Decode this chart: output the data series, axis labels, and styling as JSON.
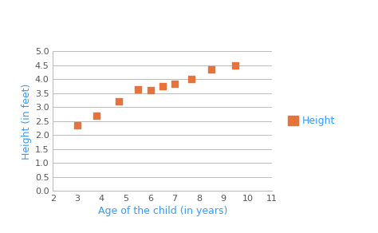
{
  "x": [
    3,
    3.8,
    4.7,
    5.5,
    6,
    6.5,
    7,
    7.7,
    8.5,
    9.5
  ],
  "y": [
    2.35,
    2.7,
    3.2,
    3.65,
    3.6,
    3.75,
    3.85,
    4.0,
    4.35,
    4.5
  ],
  "scatter_color": "#E8733A",
  "marker": "s",
  "marker_size": 35,
  "xlabel": "Age of the child (in years)",
  "ylabel": "Height (in feet)",
  "legend_label": "Height",
  "axis_color": "#3399FF",
  "tick_color": "#555555",
  "xlim": [
    2,
    11
  ],
  "ylim": [
    0,
    5
  ],
  "xticks": [
    2,
    3,
    4,
    5,
    6,
    7,
    8,
    9,
    10,
    11
  ],
  "yticks": [
    0,
    0.5,
    1,
    1.5,
    2,
    2.5,
    3,
    3.5,
    4,
    4.5,
    5
  ],
  "grid_color": "#BBBBBB",
  "bg_color": "#FFFFFF",
  "label_fontsize": 9,
  "tick_fontsize": 8
}
